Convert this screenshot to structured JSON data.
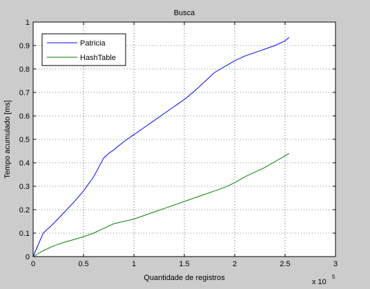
{
  "chart_data": {
    "type": "line",
    "title": "Busca",
    "xlabel": "Quantidade de registros",
    "ylabel": "Tempo acumulado [ms]",
    "x_exponent_label": "x 10",
    "x_exponent_power": "5",
    "xlim": [
      0,
      3
    ],
    "ylim": [
      0,
      1
    ],
    "xticks": [
      "0",
      "0.5",
      "1",
      "1.5",
      "2",
      "2.5",
      "3"
    ],
    "yticks": [
      "0",
      "0.1",
      "0.2",
      "0.3",
      "0.4",
      "0.5",
      "0.6",
      "0.7",
      "0.8",
      "0.9",
      "1"
    ],
    "grid": true,
    "legend_position": "top-left",
    "series": [
      {
        "name": "Patricia",
        "color": "#0000ff",
        "x": [
          0,
          0.05,
          0.1,
          0.15,
          0.2,
          0.3,
          0.4,
          0.5,
          0.6,
          0.65,
          0.7,
          0.75,
          0.8,
          0.9,
          1.0,
          1.1,
          1.2,
          1.3,
          1.4,
          1.5,
          1.6,
          1.7,
          1.8,
          1.9,
          2.0,
          2.1,
          2.2,
          2.3,
          2.4,
          2.5,
          2.54
        ],
        "y": [
          0,
          0.05,
          0.1,
          0.12,
          0.14,
          0.185,
          0.23,
          0.28,
          0.34,
          0.38,
          0.42,
          0.44,
          0.455,
          0.49,
          0.52,
          0.55,
          0.58,
          0.61,
          0.64,
          0.67,
          0.705,
          0.745,
          0.785,
          0.81,
          0.835,
          0.855,
          0.87,
          0.885,
          0.9,
          0.92,
          0.935
        ]
      },
      {
        "name": "HashTable",
        "color": "#008000",
        "x": [
          0,
          0.1,
          0.2,
          0.3,
          0.4,
          0.5,
          0.6,
          0.7,
          0.8,
          0.9,
          1.0,
          1.1,
          1.2,
          1.3,
          1.4,
          1.5,
          1.6,
          1.7,
          1.8,
          1.9,
          2.0,
          2.1,
          2.2,
          2.3,
          2.4,
          2.5,
          2.54
        ],
        "y": [
          0,
          0.025,
          0.045,
          0.06,
          0.072,
          0.085,
          0.1,
          0.12,
          0.14,
          0.15,
          0.16,
          0.175,
          0.19,
          0.205,
          0.22,
          0.235,
          0.25,
          0.265,
          0.28,
          0.295,
          0.315,
          0.34,
          0.36,
          0.38,
          0.405,
          0.43,
          0.44
        ]
      }
    ]
  }
}
